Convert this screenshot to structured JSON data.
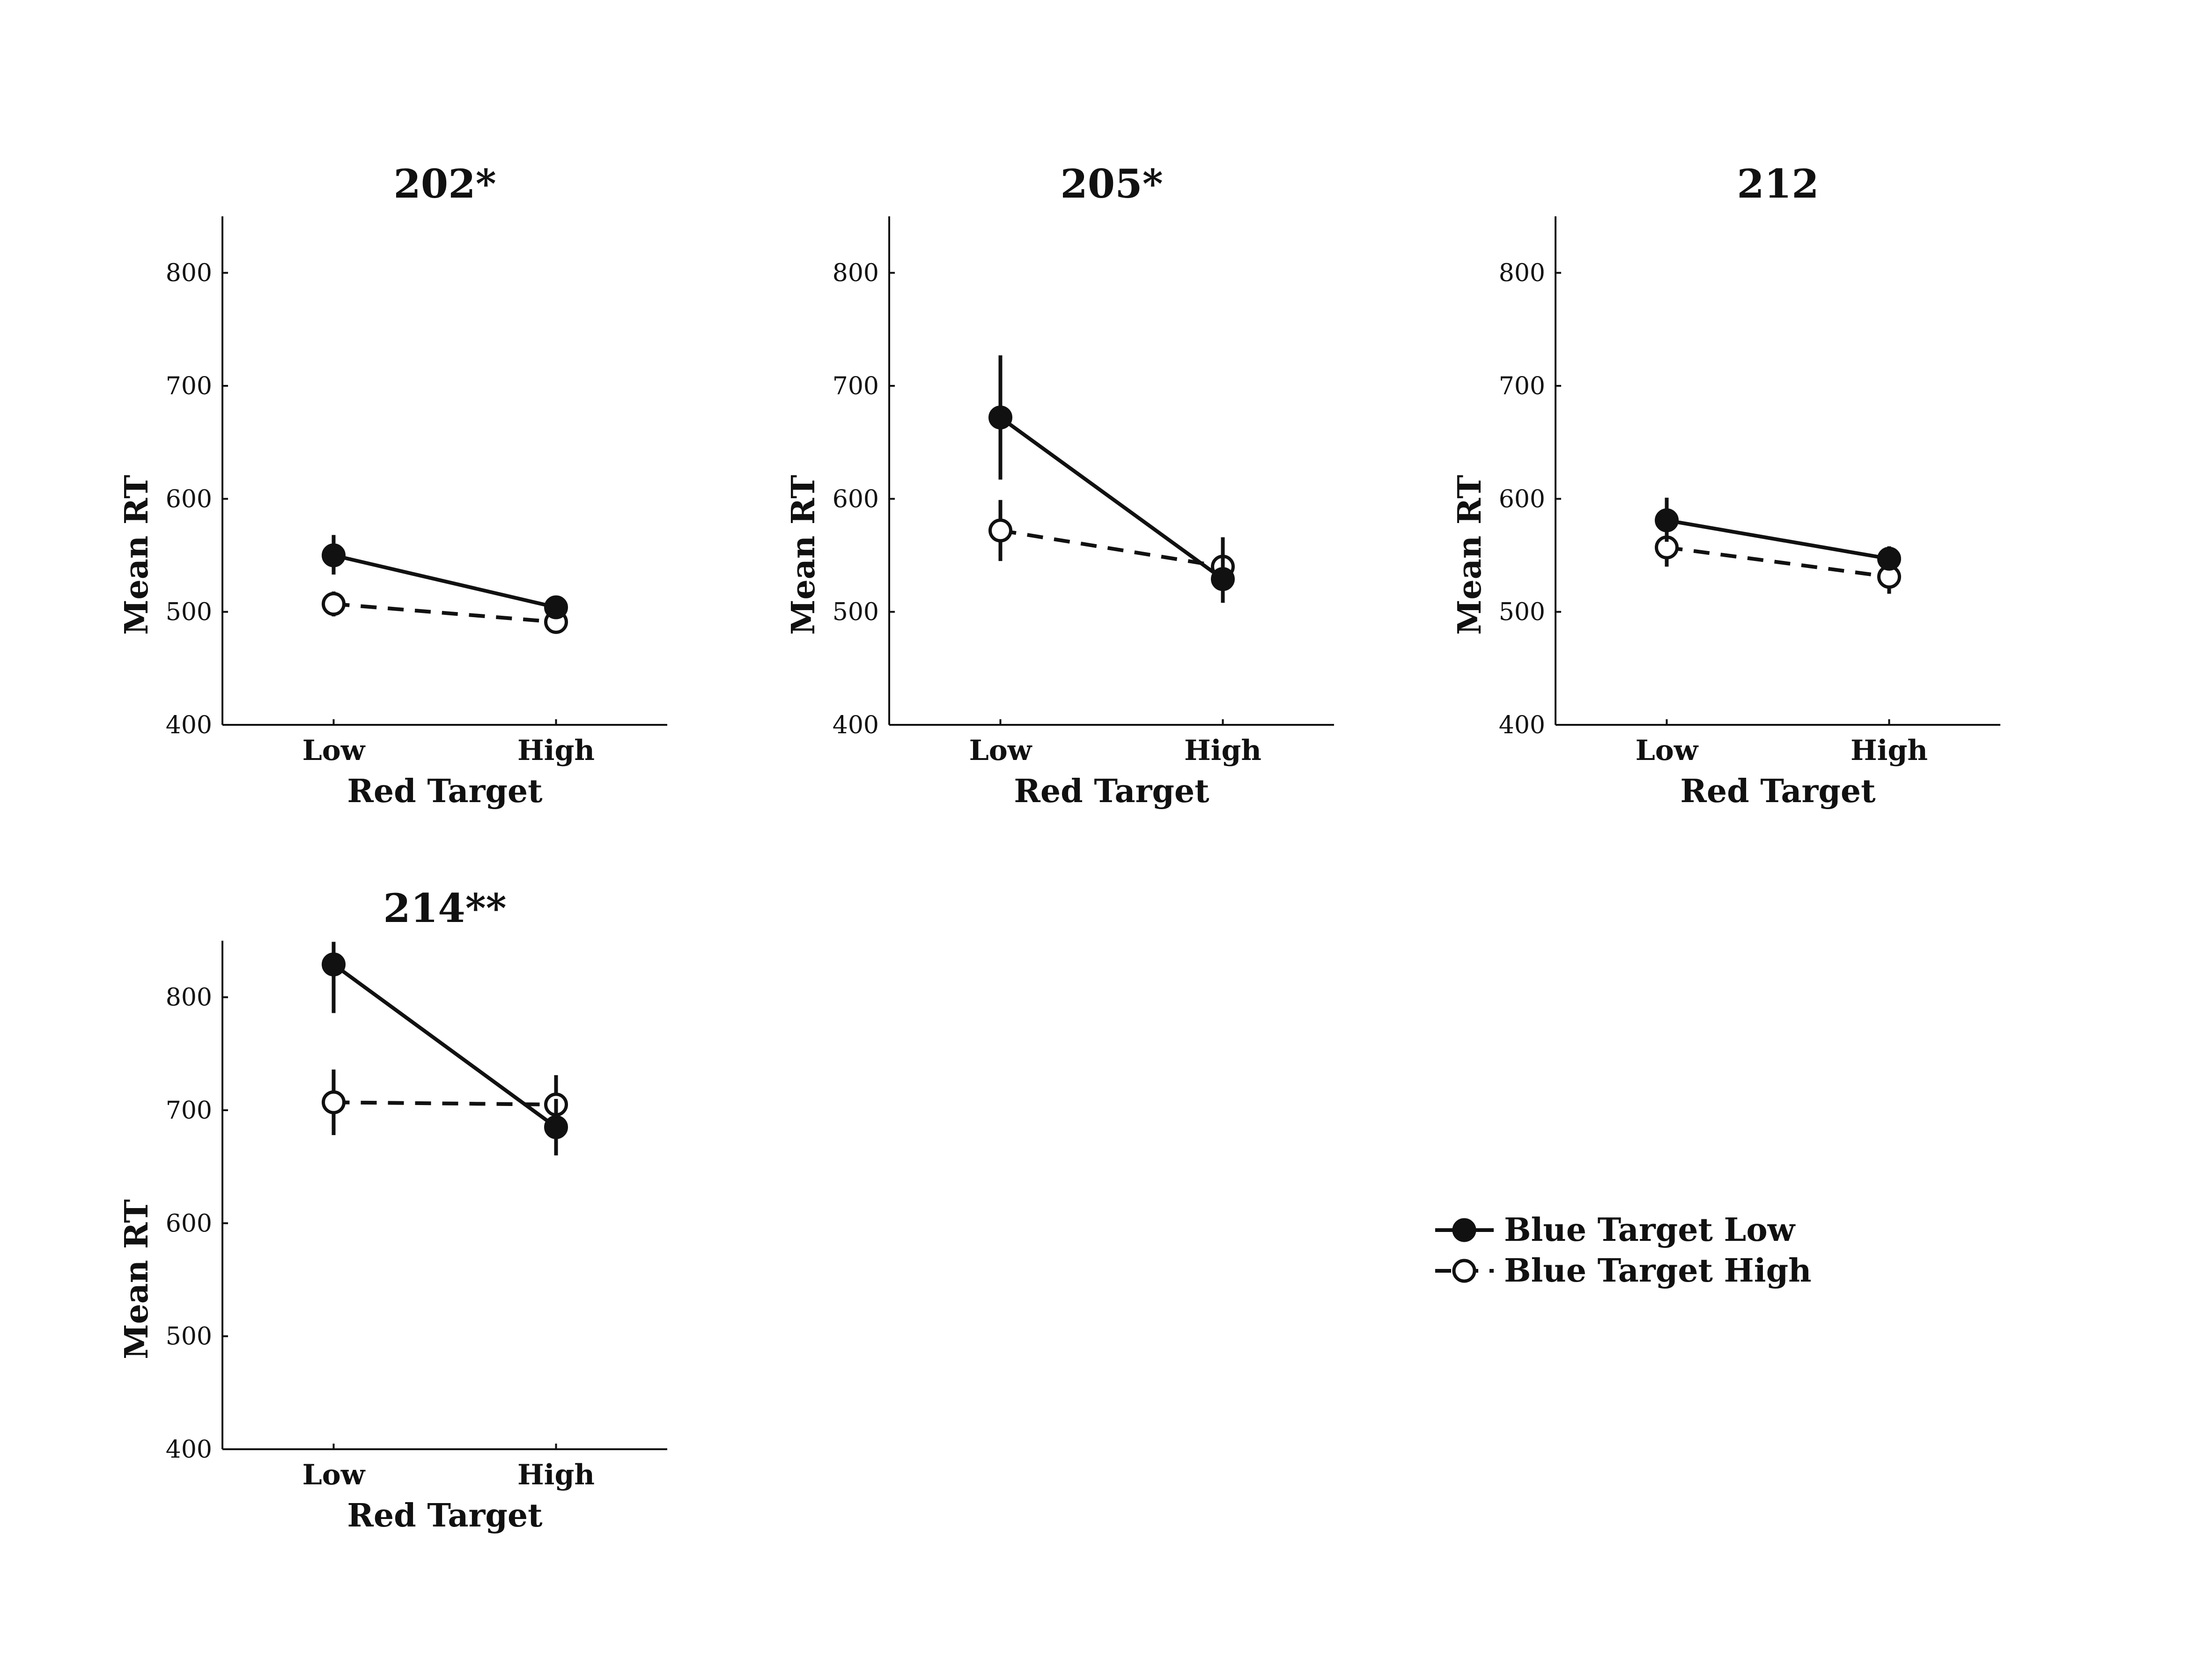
{
  "chart_data": [
    {
      "type": "line",
      "title": "202*",
      "xlabel": "Red Target",
      "ylabel": "Mean RT",
      "categories": [
        "Low",
        "High"
      ],
      "ylim": [
        400,
        850
      ],
      "yticks": [
        400,
        500,
        600,
        700,
        800
      ],
      "series": [
        {
          "name": "Blue Target Low",
          "values": [
            550,
            504
          ],
          "errors": [
            [
              533,
              568
            ],
            [
              497,
              511
            ]
          ]
        },
        {
          "name": "Blue Target High",
          "values": [
            507,
            491
          ],
          "errors": [
            [
              496,
              518
            ],
            [
              484,
              498
            ]
          ]
        }
      ]
    },
    {
      "type": "line",
      "title": "205*",
      "xlabel": "Red Target",
      "ylabel": "Mean RT",
      "categories": [
        "Low",
        "High"
      ],
      "ylim": [
        400,
        850
      ],
      "yticks": [
        400,
        500,
        600,
        700,
        800
      ],
      "series": [
        {
          "name": "Blue Target Low",
          "values": [
            672,
            529
          ],
          "errors": [
            [
              617,
              727
            ],
            [
              508,
              548
            ]
          ]
        },
        {
          "name": "Blue Target High",
          "values": [
            572,
            540
          ],
          "errors": [
            [
              545,
              599
            ],
            [
              514,
              566
            ]
          ]
        }
      ]
    },
    {
      "type": "line",
      "title": "212",
      "xlabel": "Red Target",
      "ylabel": "Mean RT",
      "categories": [
        "Low",
        "High"
      ],
      "ylim": [
        400,
        850
      ],
      "yticks": [
        400,
        500,
        600,
        700,
        800
      ],
      "series": [
        {
          "name": "Blue Target Low",
          "values": [
            581,
            547
          ],
          "errors": [
            [
              562,
              601
            ],
            [
              537,
              558
            ]
          ]
        },
        {
          "name": "Blue Target High",
          "values": [
            557,
            531
          ],
          "errors": [
            [
              540,
              574
            ],
            [
              516,
              546
            ]
          ]
        }
      ]
    },
    {
      "type": "line",
      "title": "214**",
      "xlabel": "Red Target",
      "ylabel": "Mean RT",
      "categories": [
        "Low",
        "High"
      ],
      "ylim": [
        400,
        850
      ],
      "yticks": [
        400,
        500,
        600,
        700,
        800
      ],
      "series": [
        {
          "name": "Blue Target Low",
          "values": [
            829,
            685
          ],
          "errors": [
            [
              786,
              849
            ],
            [
              660,
              710
            ]
          ]
        },
        {
          "name": "Blue Target High",
          "values": [
            707,
            705
          ],
          "errors": [
            [
              678,
              736
            ],
            [
              680,
              731
            ]
          ]
        }
      ]
    }
  ],
  "legend": {
    "location": "lower-right",
    "items": [
      {
        "label": "Blue Target Low",
        "line": "solid",
        "marker": "filled-circle"
      },
      {
        "label": "Blue Target High",
        "line": "dashed",
        "marker": "open-circle"
      }
    ]
  },
  "colors": {
    "ink": "#111111",
    "background": "#ffffff"
  }
}
